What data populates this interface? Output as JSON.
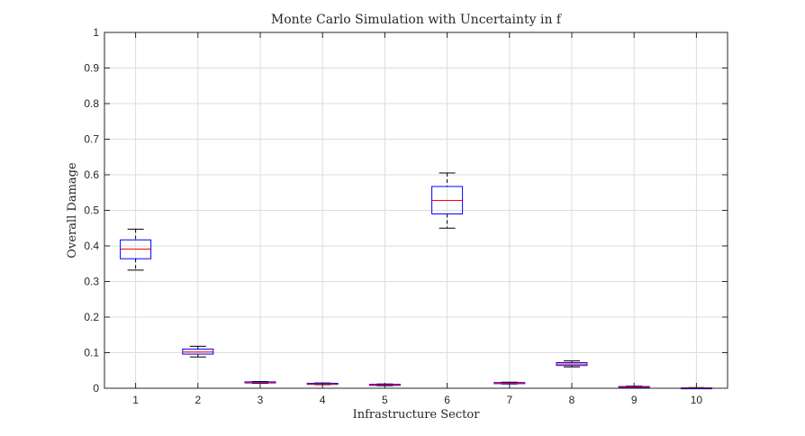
{
  "colors": {
    "box": "#0000ff",
    "median": "#ff0000",
    "whisker": "#000000",
    "grid": "#dcdcdc",
    "axis": "#262626"
  },
  "chart_data": {
    "type": "boxplot",
    "title": "Monte Carlo Simulation with Uncertainty in f",
    "xlabel": "Infrastructure Sector",
    "ylabel": "Overall Damage",
    "categories": [
      "1",
      "2",
      "3",
      "4",
      "5",
      "6",
      "7",
      "8",
      "9",
      "10"
    ],
    "ylim": [
      0,
      1
    ],
    "yticks": [
      "0",
      "0.1",
      "0.2",
      "0.3",
      "0.4",
      "0.5",
      "0.6",
      "0.7",
      "0.8",
      "0.9",
      "1"
    ],
    "grid": true,
    "boxes": [
      {
        "category": "1",
        "min": 0.332,
        "q1": 0.364,
        "median": 0.391,
        "q3": 0.417,
        "max": 0.447
      },
      {
        "category": "2",
        "min": 0.088,
        "q1": 0.096,
        "median": 0.102,
        "q3": 0.11,
        "max": 0.118
      },
      {
        "category": "3",
        "min": 0.014,
        "q1": 0.015,
        "median": 0.016,
        "q3": 0.018,
        "max": 0.019
      },
      {
        "category": "4",
        "min": 0.01,
        "q1": 0.011,
        "median": 0.012,
        "q3": 0.014,
        "max": 0.015
      },
      {
        "category": "5",
        "min": 0.007,
        "q1": 0.008,
        "median": 0.009,
        "q3": 0.011,
        "max": 0.012
      },
      {
        "category": "6",
        "min": 0.45,
        "q1": 0.49,
        "median": 0.528,
        "q3": 0.567,
        "max": 0.605
      },
      {
        "category": "7",
        "min": 0.012,
        "q1": 0.013,
        "median": 0.014,
        "q3": 0.016,
        "max": 0.017
      },
      {
        "category": "8",
        "min": 0.06,
        "q1": 0.064,
        "median": 0.068,
        "q3": 0.072,
        "max": 0.077
      },
      {
        "category": "9",
        "min": 0.002,
        "q1": 0.003,
        "median": 0.004,
        "q3": 0.005,
        "max": 0.006
      },
      {
        "category": "10",
        "min": 0.0,
        "q1": 0.0,
        "median": 0.001,
        "q3": 0.001,
        "max": 0.002
      }
    ]
  }
}
